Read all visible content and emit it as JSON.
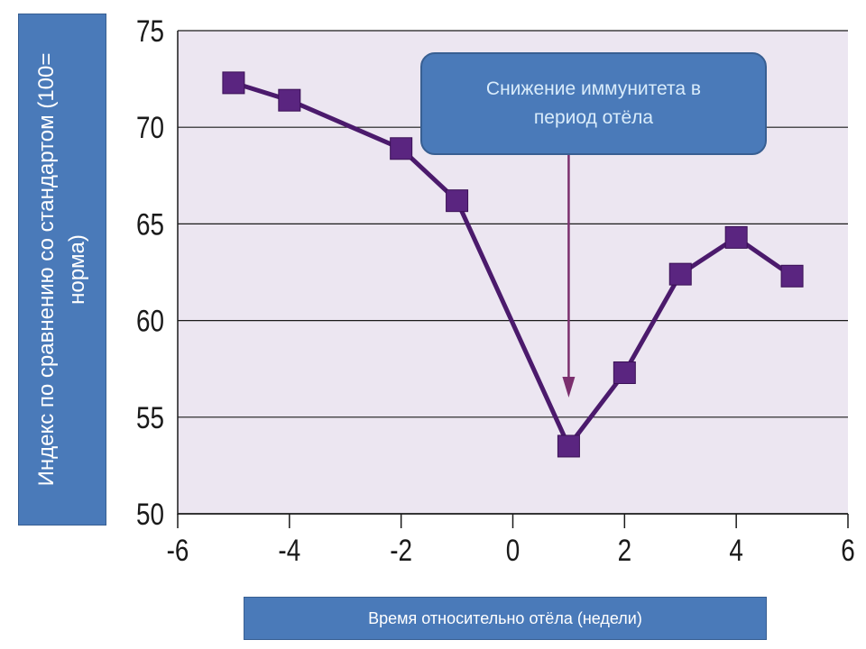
{
  "chart_data": {
    "type": "line",
    "ylabel": "Индекс по сравнению со стандартом (100= норма)",
    "xlabel": "Время относительно отёла (недели)",
    "annotation": "Снижение иммунитета в\nпериод отёла",
    "xlim": [
      -6,
      6
    ],
    "ylim": [
      50,
      75
    ],
    "xticks": [
      "-6",
      "-4",
      "-2",
      "0",
      "2",
      "4",
      "6"
    ],
    "yticks": [
      "50",
      "55",
      "60",
      "65",
      "70",
      "75"
    ],
    "grid": "horizontal",
    "series": [
      {
        "x": [
          -5,
          -4,
          -2,
          -1,
          1,
          2,
          3,
          4,
          5
        ],
        "y": [
          72.3,
          71.4,
          68.9,
          66.2,
          53.5,
          57.3,
          62.4,
          64.3,
          62.3
        ]
      }
    ],
    "arrow_x": 1,
    "colors": {
      "plot_bg": "#ece6f1",
      "line": "#4b1a6c",
      "marker": "#5a2580",
      "arrow": "#7b2f6e",
      "label_box": "#4a7ab9"
    }
  }
}
